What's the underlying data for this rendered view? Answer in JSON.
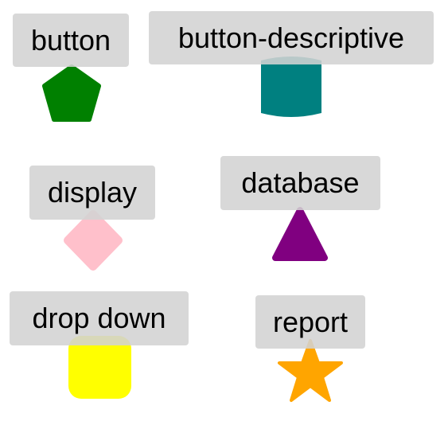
{
  "items": [
    {
      "label": "button",
      "shape": "pentagon",
      "color": "#008000",
      "icon": "pentagon-icon"
    },
    {
      "label": "button-descriptive",
      "shape": "cylinder",
      "color": "#008080",
      "icon": "cylinder-icon"
    },
    {
      "label": "display",
      "shape": "diamond",
      "color": "#ffc0cb",
      "icon": "diamond-icon"
    },
    {
      "label": "database",
      "shape": "triangle",
      "color": "#800080",
      "icon": "triangle-icon"
    },
    {
      "label": "drop down",
      "shape": "rounded-square",
      "color": "#ffff00",
      "icon": "rounded-square-icon"
    },
    {
      "label": "report",
      "shape": "star",
      "color": "#ffa500",
      "icon": "star-icon"
    }
  ]
}
